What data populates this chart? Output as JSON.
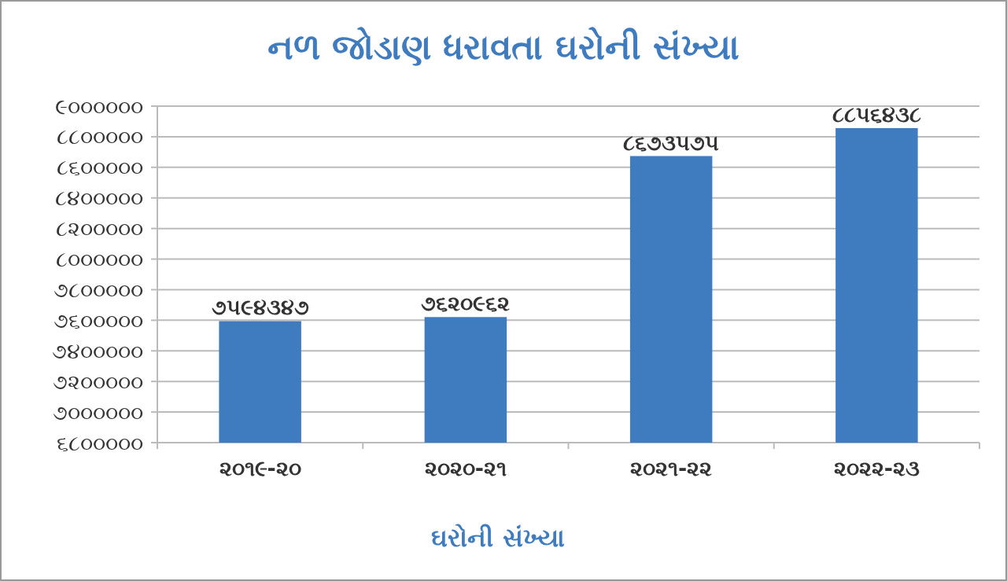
{
  "chart_data": {
    "type": "bar",
    "title": "નળ જોડાણ ધરાવતા ઘરોની સંખ્યા",
    "xlabel": "ઘરોની સંખ્યા",
    "categories": [
      "૨૦૧૯-૨૦",
      "૨૦૨૦-૨૧",
      "૨૦૨૧-૨૨",
      "૨૦૨૨-૨૩"
    ],
    "values": [
      7594347,
      7620962,
      8673575,
      8856438
    ],
    "value_labels": [
      "૭૫૯૪૩૪૭",
      "૭૬૨૦૯૬૨",
      "૮૬૭૩૫૭૫",
      "૮૮૫૬૪૩૮"
    ],
    "color": "#3f7bbf",
    "ylim": [
      6800000,
      9000000
    ],
    "yticks": [
      {
        "value": 6800000,
        "label": "૬૮૦૦૦૦૦"
      },
      {
        "value": 7000000,
        "label": "૭૦૦૦૦૦૦"
      },
      {
        "value": 7200000,
        "label": "૭૨૦૦૦૦૦"
      },
      {
        "value": 7400000,
        "label": "૭૪૦૦૦૦૦"
      },
      {
        "value": 7600000,
        "label": "૭૬૦૦૦૦૦"
      },
      {
        "value": 7800000,
        "label": "૭૮૦૦૦૦૦"
      },
      {
        "value": 8000000,
        "label": "૮૦૦૦૦૦૦"
      },
      {
        "value": 8200000,
        "label": "૮૨૦૦૦૦૦"
      },
      {
        "value": 8400000,
        "label": "૮૪૦૦૦૦૦"
      },
      {
        "value": 8600000,
        "label": "૮૬૦૦૦૦૦"
      },
      {
        "value": 8800000,
        "label": "૮૮૦૦૦૦૦"
      },
      {
        "value": 9000000,
        "label": "૯૦૦૦૦૦૦"
      }
    ],
    "grid": "y"
  }
}
